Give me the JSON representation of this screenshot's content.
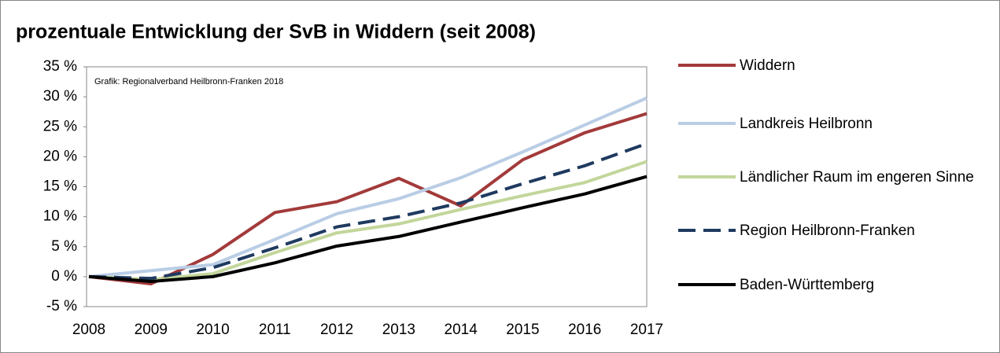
{
  "chart_data": {
    "type": "line",
    "title": "prozentuale Entwicklung der SvB in Widdern (seit 2008)",
    "annotation": "Grafik: Regionalverband Heilbronn-Franken 2018",
    "categories": [
      "2008",
      "2009",
      "2010",
      "2011",
      "2012",
      "2013",
      "2014",
      "2015",
      "2016",
      "2017"
    ],
    "series": [
      {
        "name": "Widdern",
        "color": "#a33a3a",
        "dashed": false,
        "values": [
          0,
          -1.2,
          3.7,
          10.7,
          12.5,
          16.4,
          11.8,
          19.5,
          24.0,
          27.2
        ]
      },
      {
        "name": "Landkreis Heilbronn",
        "color": "#b9cde5",
        "dashed": false,
        "values": [
          0,
          1.0,
          2.0,
          6.2,
          10.5,
          13.0,
          16.5,
          20.8,
          25.3,
          29.8
        ]
      },
      {
        "name": "Ländlicher Raum im engeren Sinne",
        "color": "#c3d69b",
        "dashed": false,
        "values": [
          0,
          -0.5,
          0.5,
          4.0,
          7.3,
          8.8,
          11.2,
          13.5,
          15.7,
          19.2
        ]
      },
      {
        "name": "Region Heilbronn-Franken",
        "color": "#1f3a5f",
        "dashed": true,
        "values": [
          0,
          -0.3,
          1.5,
          4.8,
          8.3,
          10.0,
          12.3,
          15.5,
          18.5,
          22.2
        ]
      },
      {
        "name": "Baden-Württemberg",
        "color": "#000000",
        "dashed": false,
        "values": [
          0,
          -0.8,
          0,
          2.3,
          5.1,
          6.7,
          9.1,
          11.5,
          13.8,
          16.7
        ]
      }
    ],
    "ylim": [
      -5,
      35
    ],
    "yticks": [
      {
        "value": -5,
        "label": "-5 %"
      },
      {
        "value": 0,
        "label": "0 %"
      },
      {
        "value": 5,
        "label": "5 %"
      },
      {
        "value": 10,
        "label": "10 %"
      },
      {
        "value": 15,
        "label": "15 %"
      },
      {
        "value": 20,
        "label": "20 %"
      },
      {
        "value": 25,
        "label": "25 %"
      },
      {
        "value": 30,
        "label": "30 %"
      },
      {
        "value": 35,
        "label": "35 %"
      }
    ],
    "grid": false,
    "legend": "right"
  }
}
